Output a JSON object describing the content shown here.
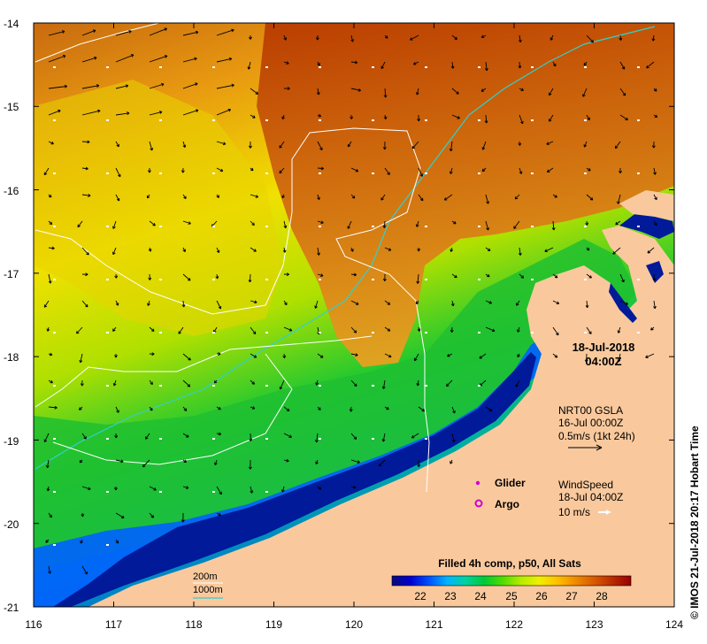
{
  "map": {
    "lon_ticks": [
      "116",
      "117",
      "118",
      "119",
      "120",
      "121",
      "122",
      "123",
      "124"
    ],
    "lat_ticks": [
      "-14",
      "-15",
      "-16",
      "-17",
      "-18",
      "-19",
      "-20",
      "-21"
    ]
  },
  "timestamp": {
    "date": "18-Jul-2018",
    "time": "04:00Z"
  },
  "currents_legend": {
    "line1": "NRT00 GSLA",
    "line2": "16-Jul 00:00Z",
    "line3": "0.5m/s (1kt 24h)"
  },
  "markers_legend": {
    "glider": "Glider",
    "argo": "Argo"
  },
  "wind_legend": {
    "line1": "WindSpeed",
    "line2": "18-Jul 04:00Z",
    "line3": "10 m/s"
  },
  "colorbar": {
    "title": "Filled 4h comp, p50, All Sats",
    "ticks": [
      "22",
      "23",
      "24",
      "25",
      "26",
      "27",
      "28"
    ],
    "colors": [
      "#0a0a7a",
      "#0000d0",
      "#0050ff",
      "#00b4ff",
      "#00d2a0",
      "#00c838",
      "#50dc00",
      "#b4ec00",
      "#f0f000",
      "#ffc000",
      "#f08a00",
      "#d85a00",
      "#b82a00",
      "#9a0000"
    ]
  },
  "contours_legend": {
    "c200": "200m",
    "c1000": "1000m"
  },
  "credit": "© IMOS 21-Jul-2018 20:17 Hobart Time",
  "colors": {
    "land": "#f9c99d",
    "ocean_warm": "#d06a10",
    "ocean_mid": "#f0e000",
    "ocean_cool": "#00c040",
    "ocean_coast": "#001a9a",
    "contour_200": "#ffffff",
    "contour_1000": "#30d0d0",
    "glider": "#d000d0"
  }
}
